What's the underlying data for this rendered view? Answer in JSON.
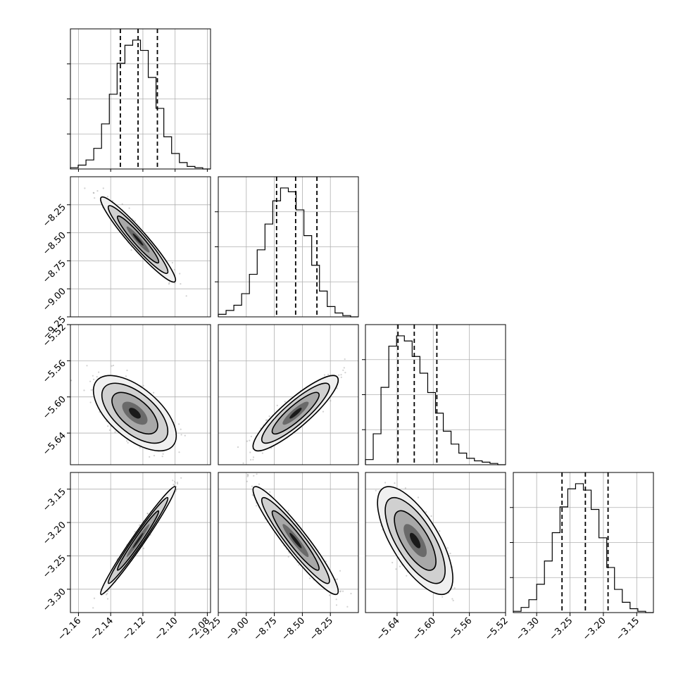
{
  "chart_data": {
    "type": "corner",
    "grid": true,
    "parameters": [
      {
        "index": 0,
        "range": [
          -2.165,
          -2.078
        ],
        "ticks": [
          -2.16,
          -2.14,
          -2.12,
          -2.1,
          -2.08
        ],
        "tick_labels": [
          "−2.16",
          "−2.14",
          "−2.12",
          "−2.10",
          "−2.08"
        ],
        "quantiles": [
          -2.134,
          -2.123,
          -2.111
        ]
      },
      {
        "index": 1,
        "range": [
          -9.25,
          -8.0
        ],
        "ticks": [
          -9.25,
          -9.0,
          -8.75,
          -8.5,
          -8.25
        ],
        "tick_labels": [
          "−9.25",
          "−9.00",
          "−8.75",
          "−8.50",
          "−8.25"
        ],
        "quantiles": [
          -8.73,
          -8.56,
          -8.37
        ]
      },
      {
        "index": 2,
        "range": [
          -5.675,
          -5.52
        ],
        "ticks": [
          -5.64,
          -5.6,
          -5.56,
          -5.52
        ],
        "tick_labels": [
          "−5.64",
          "−5.60",
          "−5.56",
          "−5.52"
        ],
        "y_ticks": [
          -5.52,
          -5.56,
          -5.6,
          -5.64
        ],
        "y_tick_labels": [
          "−5.52",
          "−5.56",
          "−5.60",
          "−5.64"
        ],
        "quantiles": [
          -5.639,
          -5.621,
          -5.596
        ]
      },
      {
        "index": 3,
        "range": [
          -3.335,
          -3.125
        ],
        "ticks": [
          -3.3,
          -3.25,
          -3.2,
          -3.15
        ],
        "tick_labels": [
          "−3.30",
          "−3.25",
          "−3.20",
          "−3.15"
        ],
        "y_ticks": [
          -3.15,
          -3.2,
          -3.25,
          -3.3
        ],
        "y_tick_labels": [
          "−3.15",
          "−3.20",
          "−3.25",
          "−3.30"
        ],
        "quantiles": [
          -3.262,
          -3.227,
          -3.193
        ]
      }
    ],
    "histograms": [
      {
        "param": 0,
        "counts": [
          1,
          3,
          7,
          16,
          35,
          58,
          82,
          96,
          100,
          92,
          71,
          47,
          25,
          12,
          5,
          2,
          1,
          0
        ]
      },
      {
        "param": 1,
        "counts": [
          2,
          5,
          9,
          18,
          33,
          52,
          72,
          90,
          100,
          97,
          83,
          63,
          40,
          20,
          8,
          3,
          1,
          0
        ]
      },
      {
        "param": 2,
        "counts": [
          4,
          24,
          60,
          92,
          100,
          96,
          84,
          71,
          56,
          40,
          26,
          16,
          9,
          5,
          3,
          2,
          1,
          0
        ]
      },
      {
        "param": 3,
        "counts": [
          1,
          4,
          10,
          22,
          40,
          62,
          82,
          96,
          100,
          95,
          80,
          58,
          35,
          18,
          8,
          3,
          1,
          0
        ]
      }
    ],
    "pairs": [
      {
        "x_param": 0,
        "y_param": 1,
        "mean": [
          -2.123,
          -8.56
        ],
        "sd": [
          0.0095,
          0.155
        ],
        "corr": -0.95
      },
      {
        "x_param": 0,
        "y_param": 2,
        "mean": [
          -2.125,
          -5.618
        ],
        "sd": [
          0.0105,
          0.017
        ],
        "corr": -0.6
      },
      {
        "x_param": 1,
        "y_param": 2,
        "mean": [
          -8.56,
          -5.618
        ],
        "sd": [
          0.155,
          0.017
        ],
        "corr": 0.88
      },
      {
        "x_param": 0,
        "y_param": 3,
        "mean": [
          -2.123,
          -3.227
        ],
        "sd": [
          0.0095,
          0.033
        ],
        "corr": 0.98
      },
      {
        "x_param": 1,
        "y_param": 3,
        "mean": [
          -8.56,
          -3.227
        ],
        "sd": [
          0.155,
          0.033
        ],
        "corr": -0.94
      },
      {
        "x_param": 2,
        "y_param": 3,
        "mean": [
          -5.62,
          -3.227
        ],
        "sd": [
          0.017,
          0.033
        ],
        "corr": -0.7
      }
    ]
  }
}
